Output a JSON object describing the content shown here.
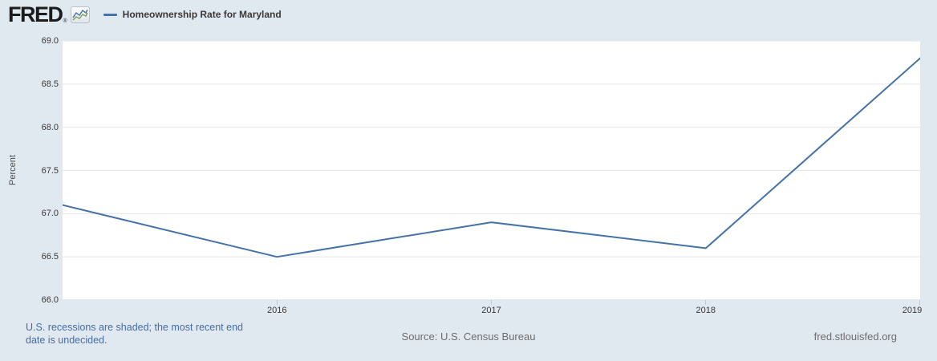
{
  "header": {
    "logo_text": "FRED",
    "registered_mark": "®",
    "series_label": "Homeownership Rate for Maryland"
  },
  "chart_data": {
    "type": "line",
    "title": "Homeownership Rate for Maryland",
    "series_name": "Homeownership Rate for Maryland",
    "x": [
      2015,
      2016,
      2017,
      2018,
      2019
    ],
    "values": [
      67.1,
      66.5,
      66.9,
      66.6,
      68.8
    ],
    "xlabel": "",
    "ylabel": "Percent",
    "xlim": [
      2015,
      2019
    ],
    "ylim": [
      66.0,
      69.0
    ],
    "yticks": [
      69.0,
      68.5,
      68.0,
      67.5,
      67.0,
      66.5,
      66.0
    ],
    "ytick_labels": [
      "69.0",
      "68.5",
      "68.0",
      "67.5",
      "67.0",
      "66.5",
      "66.0"
    ],
    "xticks": [
      2016,
      2017,
      2018,
      2019
    ],
    "xtick_labels": [
      "2016",
      "2017",
      "2018",
      "2019"
    ],
    "grid": true,
    "legend_position": "top-left",
    "line_color": "#4572a7"
  },
  "footer": {
    "recession_note": "U.S. recessions are shaded; the most recent end date is undecided.",
    "source": "Source: U.S. Census Bureau",
    "site": "fred.stlouisfed.org"
  },
  "colors": {
    "background": "#e1e9f0",
    "plot_background": "#ffffff",
    "gridline": "#e6e6e6",
    "axis_line": "#c9d0d7",
    "tick": "#c3cbd2",
    "line": "#4572a7",
    "icon_blue": "#4572a7",
    "icon_green": "#7ba154"
  }
}
